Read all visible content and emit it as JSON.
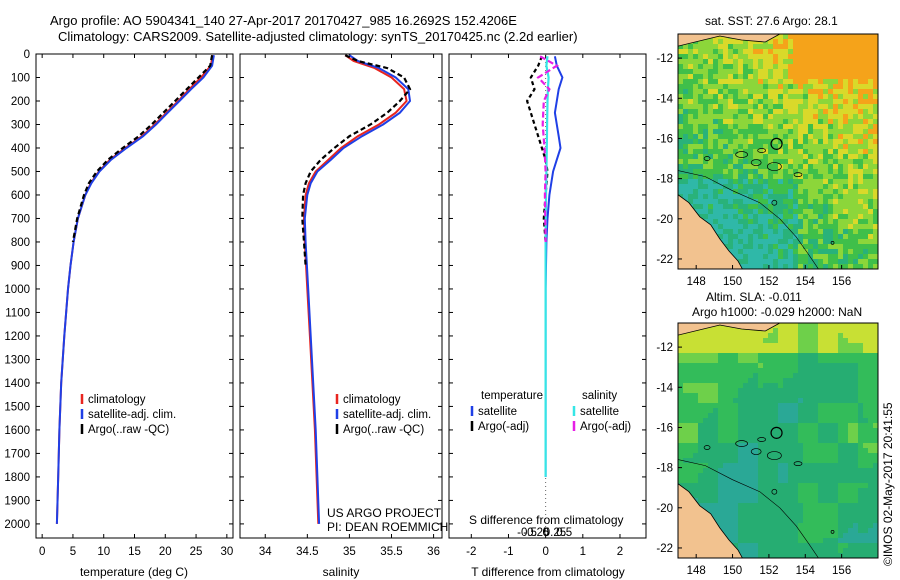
{
  "header": {
    "line1": "Argo profile: AO 5904341_140 27-Apr-2017 20170427_985 16.2692S 152.4206E",
    "line2": "Climatology: CARS2009. Satellite-adjusted climatology: synTS_20170425.nc (2.2d earlier)"
  },
  "depth_ticks": [
    0,
    100,
    200,
    300,
    400,
    500,
    600,
    700,
    800,
    900,
    1000,
    1100,
    1200,
    1300,
    1400,
    1500,
    1600,
    1700,
    1800,
    1900,
    2000
  ],
  "colors": {
    "climatology": "#e8251f",
    "satellite": "#1f3fe6",
    "argo": "#000000",
    "sal_satellite": "#35e6e6",
    "sal_argo": "#e61fe6"
  },
  "chart_data": [
    {
      "type": "line",
      "name": "temperature",
      "xlabel": "temperature (deg C)",
      "xlim": [
        -1,
        31
      ],
      "xticks": [
        0,
        5,
        10,
        15,
        20,
        25,
        30
      ],
      "ylim": [
        2060,
        0
      ],
      "legend": [
        "climatology",
        "satellite-adj. clim.",
        "Argo(..raw -QC)"
      ],
      "series": [
        {
          "name": "climatology",
          "depth": [
            5,
            50,
            100,
            150,
            200,
            250,
            300,
            350,
            400,
            450,
            500,
            550,
            600,
            700,
            800,
            900,
            1000,
            1200,
            1400,
            1600,
            1800,
            2000
          ],
          "values": [
            27.7,
            27.4,
            25.8,
            23.9,
            22.1,
            20.2,
            18.3,
            16.2,
            13.5,
            11.0,
            9.2,
            7.9,
            7.0,
            5.8,
            5.1,
            4.6,
            4.2,
            3.6,
            3.1,
            2.8,
            2.6,
            2.4
          ]
        },
        {
          "name": "satellite",
          "depth": [
            5,
            50,
            100,
            150,
            200,
            250,
            300,
            350,
            400,
            450,
            500,
            550,
            600,
            700,
            800,
            900,
            1000,
            1200,
            1400,
            1600,
            1800,
            2000
          ],
          "values": [
            27.9,
            27.6,
            26.2,
            24.2,
            22.3,
            20.4,
            18.5,
            16.4,
            13.7,
            11.2,
            9.3,
            8.0,
            7.0,
            5.8,
            5.1,
            4.6,
            4.2,
            3.6,
            3.1,
            2.8,
            2.6,
            2.4
          ]
        },
        {
          "name": "argo",
          "depth": [
            5,
            50,
            100,
            150,
            200,
            250,
            300,
            350,
            400,
            450,
            500,
            550,
            600,
            700,
            800
          ],
          "values": [
            27.6,
            27.3,
            25.4,
            23.5,
            21.6,
            19.7,
            17.8,
            15.7,
            13.1,
            10.7,
            8.9,
            7.6,
            6.8,
            5.7,
            5.0
          ]
        }
      ]
    },
    {
      "type": "line",
      "name": "salinity",
      "xlabel": "salinity",
      "xlim": [
        33.7,
        36.1
      ],
      "xticks": [
        34,
        34.5,
        35,
        35.5,
        36
      ],
      "ylim": [
        2060,
        0
      ],
      "legend": [
        "climatology",
        "satellite-adj. clim.",
        "Argo(..raw -QC)"
      ],
      "annotation": [
        "US ARGO PROJECT",
        "PI: DEAN ROEMMICH"
      ],
      "series": [
        {
          "name": "climatology",
          "depth": [
            5,
            30,
            60,
            100,
            150,
            200,
            250,
            300,
            350,
            400,
            450,
            500,
            550,
            600,
            700,
            800,
            1000,
            1200,
            1400,
            1600,
            1800,
            2000
          ],
          "values": [
            34.95,
            35.05,
            35.3,
            35.5,
            35.65,
            35.68,
            35.55,
            35.35,
            35.1,
            34.9,
            34.75,
            34.6,
            34.52,
            34.48,
            34.46,
            34.47,
            34.5,
            34.53,
            34.56,
            34.59,
            34.61,
            34.63
          ]
        },
        {
          "name": "satellite",
          "depth": [
            5,
            30,
            60,
            100,
            150,
            200,
            250,
            300,
            350,
            400,
            450,
            500,
            550,
            600,
            700,
            800,
            1000,
            1200,
            1400,
            1600,
            1800,
            2000
          ],
          "values": [
            35.0,
            35.1,
            35.35,
            35.55,
            35.7,
            35.72,
            35.6,
            35.4,
            35.15,
            34.93,
            34.78,
            34.62,
            34.54,
            34.5,
            34.47,
            34.48,
            34.51,
            34.54,
            34.57,
            34.6,
            34.62,
            34.64
          ]
        },
        {
          "name": "argo",
          "depth": [
            5,
            30,
            60,
            100,
            150,
            200,
            250,
            300,
            350,
            400,
            450,
            500,
            550,
            600,
            700,
            800,
            900
          ],
          "values": [
            34.95,
            35.1,
            35.45,
            35.65,
            35.72,
            35.6,
            35.45,
            35.25,
            35.0,
            34.82,
            34.66,
            34.54,
            34.48,
            34.45,
            34.44,
            34.46,
            34.48
          ]
        }
      ]
    },
    {
      "type": "line",
      "name": "differences",
      "xlabel_bottom": "T difference from climatology",
      "xlabel_top": "S difference from climatology",
      "t_xlim": [
        -2.6,
        2.7
      ],
      "t_xticks": [
        -2,
        -1,
        0,
        1,
        2
      ],
      "s_xticks": [
        -0.5,
        -0.25,
        0,
        0.25,
        0.5
      ],
      "s_tick_labels": [
        "-0.5",
        "-0.25",
        "0",
        "0.25",
        "0.5"
      ],
      "ylim": [
        2060,
        0
      ],
      "legend_left_title": "temperature",
      "legend_right_title": "salinity",
      "legend_left": [
        "satellite",
        "Argo(-adj)"
      ],
      "legend_right": [
        "satellite",
        "Argo(-adj)"
      ],
      "series": [
        {
          "name": "temperature satellite",
          "depth": [
            10,
            50,
            100,
            150,
            200,
            250,
            300,
            350,
            400,
            450,
            500,
            600,
            700,
            800,
            1000,
            1200,
            1500,
            1800
          ],
          "values": [
            0.25,
            0.3,
            0.45,
            0.35,
            0.3,
            0.25,
            0.3,
            0.35,
            0.4,
            0.3,
            0.2,
            0.1,
            0.05,
            0.02,
            0.0,
            0.0,
            0.0,
            0.0
          ]
        },
        {
          "name": "temperature argo",
          "depth": [
            10,
            50,
            100,
            150,
            200,
            250,
            300,
            350,
            400,
            450,
            500,
            600,
            700,
            800
          ],
          "values": [
            -0.1,
            -0.2,
            -0.4,
            -0.3,
            -0.5,
            -0.4,
            -0.3,
            -0.2,
            -0.1,
            0.0,
            0.05,
            0.0,
            -0.05,
            0.0
          ]
        },
        {
          "name": "salinity satellite",
          "depth": [
            10,
            50,
            100,
            150,
            200,
            300,
            400,
            500,
            600,
            800,
            1000,
            1200,
            1500,
            1800
          ],
          "values": [
            0.05,
            0.02,
            0.08,
            0.06,
            0.05,
            0.04,
            0.03,
            0.02,
            0.01,
            0.0,
            0.0,
            0.0,
            0.0,
            0.0
          ]
        },
        {
          "name": "salinity argo",
          "depth": [
            10,
            50,
            100,
            150,
            200,
            300,
            400,
            500,
            600,
            700,
            800
          ],
          "values": [
            -0.15,
            0.3,
            -0.2,
            0.1,
            -0.05,
            -0.08,
            -0.03,
            0.0,
            -0.02,
            -0.01,
            0.0
          ]
        }
      ]
    }
  ],
  "maps": {
    "sst_title": "sat. SST: 27.6  Argo: 28.1",
    "sla_title1": "Altim. SLA: -0.011",
    "sla_title2": "Argo h1000: -0.029  h2000: NaN",
    "lon_ticks": [
      148,
      150,
      152,
      154,
      156
    ],
    "lat_ticks": [
      -12,
      -14,
      -16,
      -18,
      -20,
      -22
    ],
    "float_position": {
      "lon": 152.42,
      "lat": -16.27
    }
  },
  "footer": {
    "stamp": "©IMOS 02-May-2017 20:41:55"
  }
}
